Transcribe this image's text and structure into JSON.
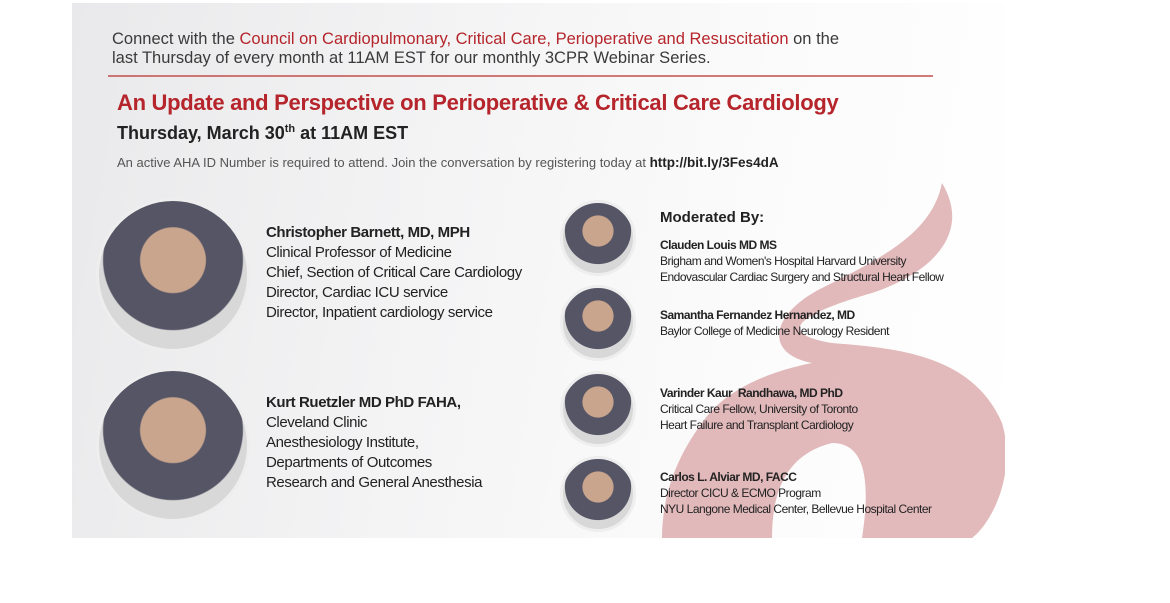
{
  "intro": {
    "before": "Connect with the ",
    "highlight": "Council on Cardiopulmonary, Critical Care, Perioperative and Resuscitation",
    "after": " on the",
    "line2": "last Thursday of every month at 11AM EST for our monthly 3CPR Webinar Series."
  },
  "title": "An Update and Perspective on Perioperative & Critical Care Cardiology",
  "date": {
    "main": "Thursday, March 30",
    "suffix": "th",
    "rest": " at 11AM EST"
  },
  "note": {
    "text": "An active AHA ID Number is required to attend. Join the conversation by registering today at ",
    "url": "http://bit.ly/3Fes4dA"
  },
  "speakers": [
    {
      "name": "Christopher Barnett, MD, MPH",
      "lines": [
        "Clinical Professor of Medicine",
        "Chief, Section of Critical Care Cardiology",
        "Director, Cardiac ICU service",
        "Director, Inpatient cardiology service"
      ]
    },
    {
      "name": "Kurt Ruetzler MD PhD FAHA,",
      "lines": [
        "Cleveland Clinic",
        "Anesthesiology Institute,",
        "Departments of Outcomes",
        "Research and General Anesthesia"
      ]
    }
  ],
  "moderators_heading": "Moderated By:",
  "moderators": [
    {
      "name": "Clauden Louis MD MS",
      "lines": [
        "Brigham and Women's Hospital Harvard University",
        "Endovascular Cardiac Surgery and Structural Heart Fellow"
      ]
    },
    {
      "name": "Samantha Fernandez Hernandez, MD",
      "lines": [
        "Baylor College of Medicine Neurology Resident"
      ]
    },
    {
      "name": "Varinder Kaur  Randhawa, MD PhD",
      "lines": [
        "Critical Care Fellow, University of Toronto",
        "Heart Failure and Transplant Cardiology"
      ]
    },
    {
      "name": "Carlos L. Alviar MD, FACC",
      "lines": [
        "Director CICU & ECMO Program",
        "NYU Langone Medical Center, Bellevue Hospital Center"
      ]
    }
  ]
}
